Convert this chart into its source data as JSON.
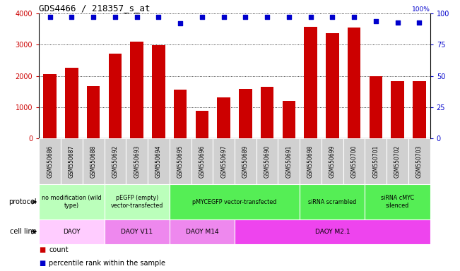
{
  "title": "GDS4466 / 218357_s_at",
  "samples": [
    "GSM550686",
    "GSM550687",
    "GSM550688",
    "GSM550692",
    "GSM550693",
    "GSM550694",
    "GSM550695",
    "GSM550696",
    "GSM550697",
    "GSM550689",
    "GSM550690",
    "GSM550691",
    "GSM550698",
    "GSM550699",
    "GSM550700",
    "GSM550701",
    "GSM550702",
    "GSM550703"
  ],
  "counts": [
    2050,
    2250,
    1680,
    2720,
    3100,
    2980,
    1560,
    880,
    1320,
    1580,
    1650,
    1200,
    3580,
    3380,
    3560,
    1980,
    1830,
    1840
  ],
  "percentiles": [
    97,
    97,
    97,
    97,
    97,
    97,
    92,
    97,
    97,
    97,
    97,
    97,
    97,
    97,
    97,
    94,
    93,
    93
  ],
  "ylim_left": [
    0,
    4000
  ],
  "ylim_right": [
    0,
    100
  ],
  "yticks_left": [
    0,
    1000,
    2000,
    3000,
    4000
  ],
  "yticks_right": [
    0,
    25,
    50,
    75,
    100
  ],
  "bar_color": "#cc0000",
  "dot_color": "#0000cc",
  "tick_bg_color": "#d0d0d0",
  "protocol_groups": [
    {
      "label": "no modification (wild\ntype)",
      "start": 0,
      "end": 3,
      "color": "#bbffbb"
    },
    {
      "label": "pEGFP (empty)\nvector-transfected",
      "start": 3,
      "end": 6,
      "color": "#bbffbb"
    },
    {
      "label": "pMYCEGFP vector-transfected",
      "start": 6,
      "end": 12,
      "color": "#55ee55"
    },
    {
      "label": "siRNA scrambled",
      "start": 12,
      "end": 15,
      "color": "#55ee55"
    },
    {
      "label": "siRNA cMYC\nsilenced",
      "start": 15,
      "end": 18,
      "color": "#55ee55"
    }
  ],
  "cellline_groups": [
    {
      "label": "DAOY",
      "start": 0,
      "end": 3,
      "color": "#ffccff"
    },
    {
      "label": "DAOY V11",
      "start": 3,
      "end": 6,
      "color": "#ee88ee"
    },
    {
      "label": "DAOY M14",
      "start": 6,
      "end": 9,
      "color": "#ee88ee"
    },
    {
      "label": "DAOY M2.1",
      "start": 9,
      "end": 18,
      "color": "#ee44ee"
    }
  ]
}
